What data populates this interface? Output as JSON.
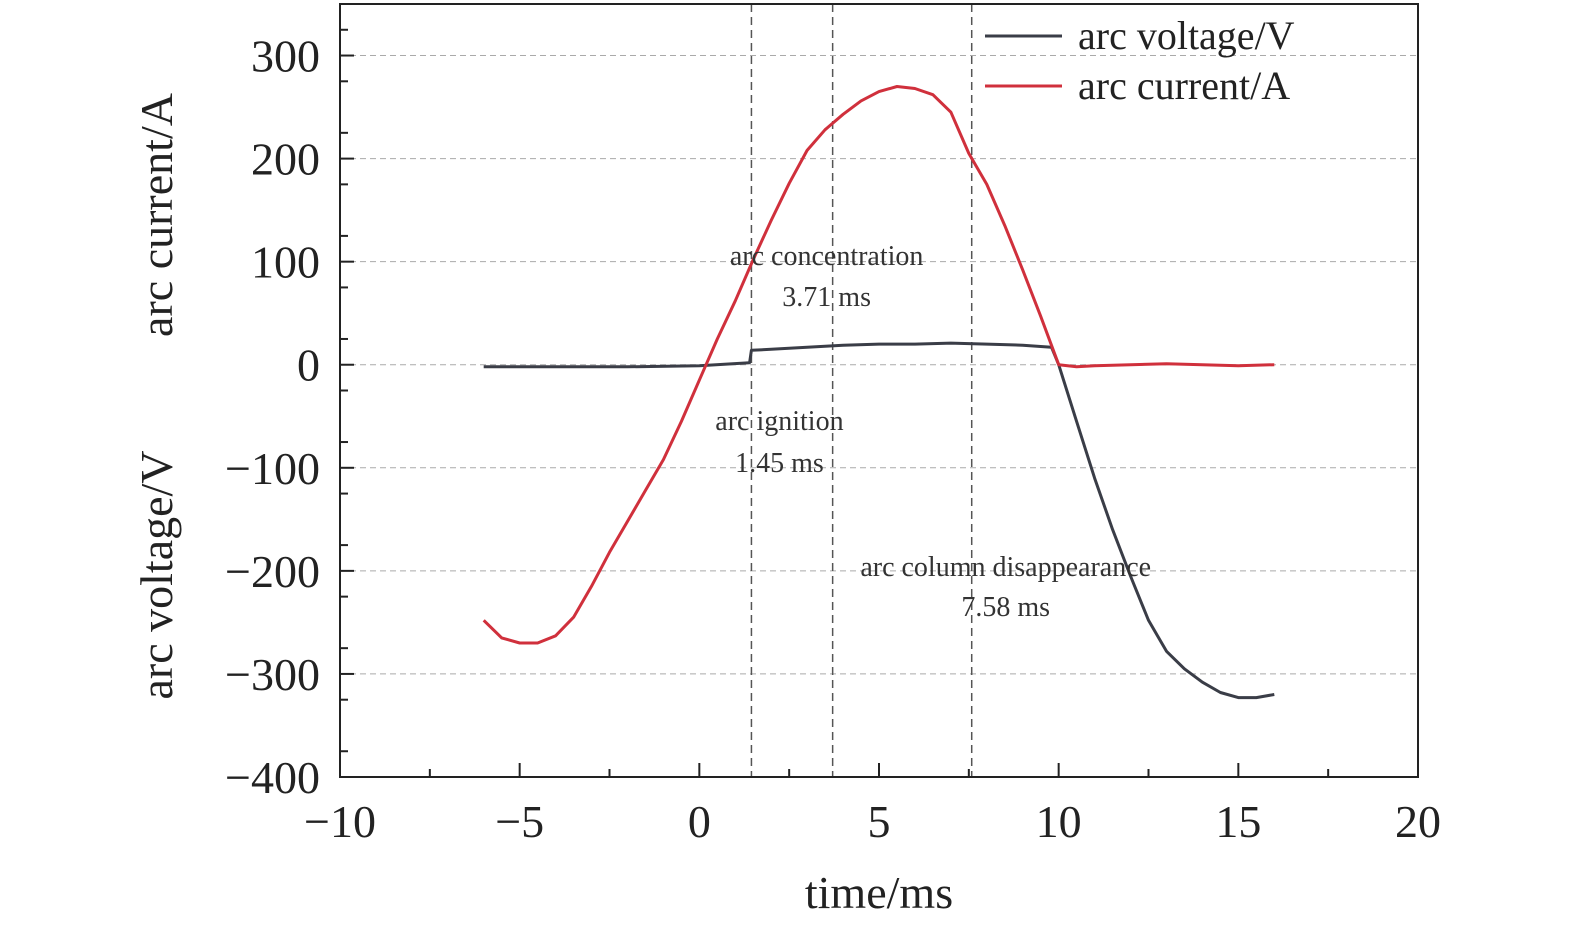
{
  "chart_data": {
    "type": "line",
    "title": "",
    "xlabel": "time/ms",
    "ylabel_lines": [
      "arc voltage/V",
      "arc current/A"
    ],
    "xlim": [
      -10,
      20
    ],
    "ylim": [
      -400,
      350
    ],
    "xticks": [
      -10,
      -5,
      0,
      5,
      10,
      15,
      20
    ],
    "xtick_labels": [
      "−10",
      "−5",
      "0",
      "5",
      "10",
      "15",
      "20"
    ],
    "yticks": [
      -400,
      -300,
      -200,
      -100,
      0,
      100,
      200,
      300
    ],
    "ytick_labels": [
      "−400",
      "−300",
      "−200",
      "−100",
      "0",
      "100",
      "200",
      "300"
    ],
    "grid": true,
    "legend_position": "top-right",
    "series": [
      {
        "name": "arc voltage/V",
        "color": "#3a3d47",
        "x": [
          -6,
          -4,
          -2,
          0,
          1.4,
          1.45,
          2,
          3,
          4,
          5,
          6,
          7,
          8,
          9,
          9.8,
          10,
          10.5,
          11,
          11.5,
          12,
          12.5,
          13,
          13.5,
          14,
          14.5,
          15,
          15.5,
          16
        ],
        "y": [
          -2,
          -2,
          -2,
          -1,
          2,
          14,
          15,
          17,
          19,
          20,
          20,
          21,
          20,
          19,
          17,
          0,
          -55,
          -110,
          -160,
          -205,
          -248,
          -278,
          -295,
          -308,
          -318,
          -323,
          -323,
          -320
        ]
      },
      {
        "name": "arc current/A",
        "color": "#d0303c",
        "x": [
          -6,
          -5.5,
          -5,
          -4.5,
          -4,
          -3.5,
          -3,
          -2.5,
          -2,
          -1.5,
          -1,
          -0.5,
          0,
          0.5,
          1,
          1.5,
          2,
          2.5,
          3,
          3.5,
          4,
          4.5,
          5,
          5.5,
          6,
          6.5,
          7,
          7.5,
          8,
          8.5,
          9,
          9.5,
          10,
          10.5,
          11,
          12,
          13,
          14,
          15,
          16
        ],
        "y": [
          -248,
          -265,
          -270,
          -270,
          -263,
          -245,
          -215,
          -182,
          -152,
          -122,
          -92,
          -55,
          -15,
          25,
          62,
          102,
          140,
          176,
          208,
          228,
          243,
          256,
          265,
          270,
          268,
          262,
          245,
          205,
          175,
          135,
          92,
          47,
          0,
          -2,
          -1,
          0,
          1,
          0,
          -1,
          0
        ]
      }
    ],
    "annotations": [
      {
        "line1": "arc ignition",
        "line2": "1.45 ms",
        "x": 1.45
      },
      {
        "line1": "arc concentration",
        "line2": "3.71 ms",
        "x": 3.71
      },
      {
        "line1": "arc column disappearance",
        "line2": "7.58 ms",
        "x": 7.58
      }
    ]
  }
}
